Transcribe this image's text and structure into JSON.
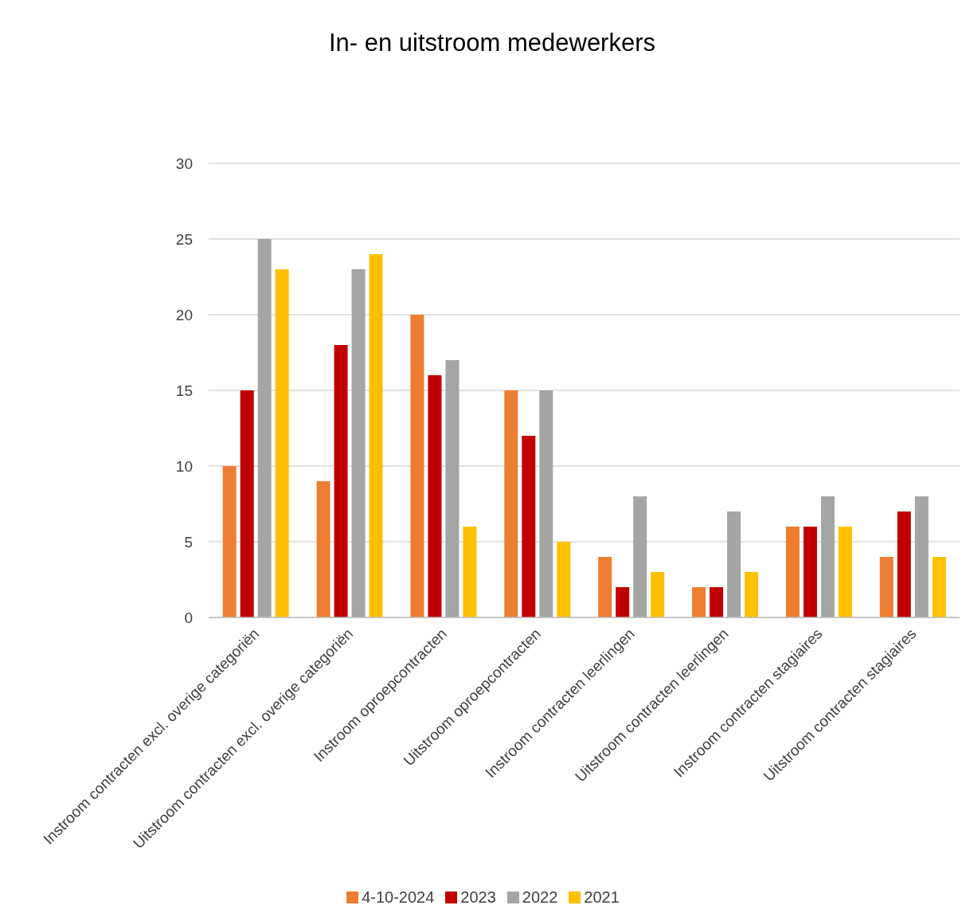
{
  "chart_data": {
    "type": "bar",
    "title": "In- en uitstroom medewerkers",
    "categories": [
      "Instroom contracten excl. overige categoriën",
      "Uitstroom contracten excl. overige categoriën",
      "Instroom oproepcontracten",
      "Uitstroom oproepcontracten",
      "Instroom contracten leerlingen",
      "Uitstroom contracten leerlingen",
      "Instroom contracten stagiaires",
      "Uitstroom contracten stagiaires"
    ],
    "series": [
      {
        "name": "4-10-2024",
        "color": "#ed7d31",
        "values": [
          10,
          9,
          20,
          15,
          4,
          2,
          6,
          4
        ]
      },
      {
        "name": "2023",
        "color": "#c00000",
        "values": [
          15,
          18,
          16,
          12,
          2,
          2,
          6,
          7
        ]
      },
      {
        "name": "2022",
        "color": "#a5a5a5",
        "values": [
          25,
          23,
          17,
          15,
          8,
          7,
          8,
          8
        ]
      },
      {
        "name": "2021",
        "color": "#ffc000",
        "values": [
          23,
          24,
          6,
          5,
          3,
          3,
          6,
          4
        ]
      }
    ],
    "ylim": [
      0,
      30
    ],
    "yticks": [
      0,
      5,
      10,
      15,
      20,
      25,
      30
    ],
    "grid": "y",
    "legend": "bottom"
  }
}
